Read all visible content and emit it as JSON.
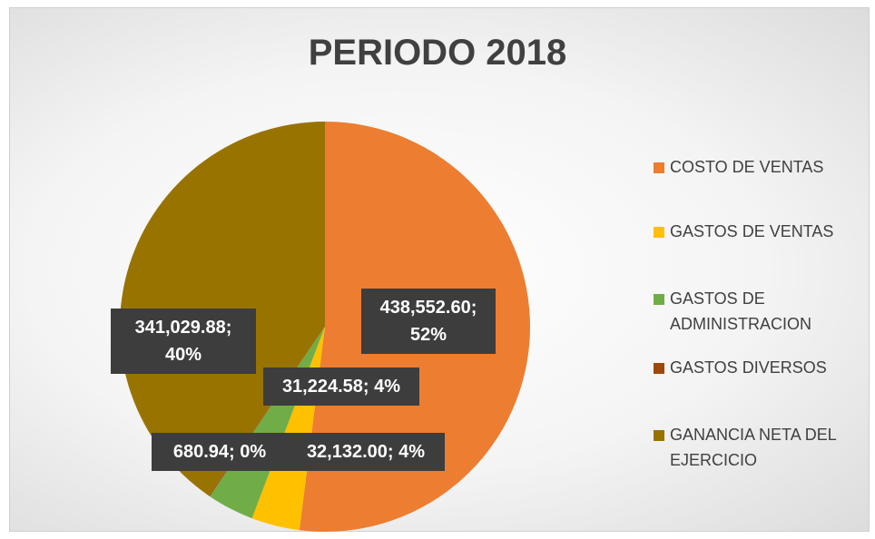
{
  "chart_data": {
    "type": "pie",
    "title": "PERIODO 2018",
    "categories": [
      "COSTO DE VENTAS",
      "GASTOS DE VENTAS",
      "GASTOS DE ADMINISTRACION",
      "GASTOS DIVERSOS",
      "GANANCIA NETA DEL EJERCICIO"
    ],
    "values": [
      438552.6,
      32132.0,
      31224.58,
      680.94,
      341029.88
    ],
    "value_labels": [
      "438,552.60; 52%",
      "32,132.00; 4%",
      "31,224.58; 4%",
      "680.94; 0%",
      "341,029.88; 40%"
    ],
    "colors": [
      "#ED7D31",
      "#FFC000",
      "#70AD47",
      "#9E480E",
      "#997300"
    ],
    "legend": "right"
  }
}
